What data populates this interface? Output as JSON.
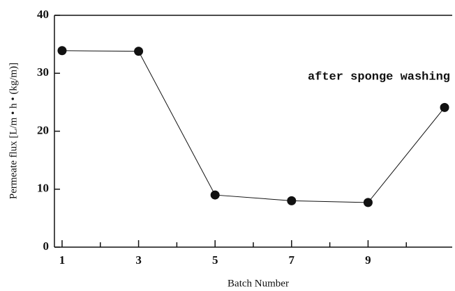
{
  "chart_data": {
    "type": "line",
    "x_label": "Batch Number",
    "y_label": "Permeate flux [L/m • h • (kg/m)]",
    "annotation": "after sponge washing",
    "x": [
      1,
      3,
      5,
      7,
      9,
      11
    ],
    "series": [
      {
        "name": "Permeate flux",
        "color": "#111111",
        "values": [
          33.9,
          33.8,
          9.0,
          8.0,
          7.7,
          24.1
        ]
      }
    ],
    "xlim": [
      0.8,
      11.2
    ],
    "xticks": [
      1,
      3,
      5,
      7,
      9
    ],
    "xminor_ticks": [
      2,
      4,
      6,
      8,
      10
    ],
    "ylim": [
      0,
      40
    ],
    "yticks": [
      0,
      10,
      20,
      30,
      40
    ]
  }
}
